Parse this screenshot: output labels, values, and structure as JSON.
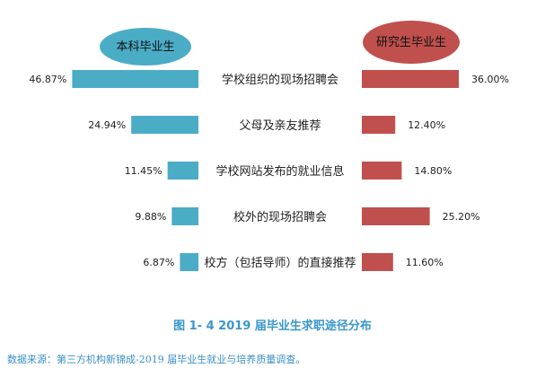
{
  "chart_data": {
    "type": "bar",
    "categories": [
      "学校组织的现场招聘会",
      "父母及亲友推荐",
      "学校网站发布的就业信息",
      "校外的现场招聘会",
      "校方（包括导师）的直接推荐"
    ],
    "series": [
      {
        "name": "本科毕业生",
        "values": [
          46.87,
          24.94,
          11.45,
          9.88,
          6.87
        ],
        "labels": [
          "46.87%",
          "24.94%",
          "11.45%",
          "9.88%",
          "6.87%"
        ],
        "color": "#4bacc6"
      },
      {
        "name": "研究生毕业生",
        "values": [
          36.0,
          12.4,
          14.8,
          25.2,
          11.6
        ],
        "labels": [
          "36.00%",
          "12.40%",
          "14.80%",
          "25.20%",
          "11.60%"
        ],
        "color": "#c0504d"
      }
    ],
    "unit": "%",
    "grid": false,
    "legend_placement": "top"
  },
  "caption": "图 1- 4    2019 届毕业生求职途径分布",
  "source": "数据来源：第三方机构新锦成-2019 届毕业生就业与培养质量调查。"
}
